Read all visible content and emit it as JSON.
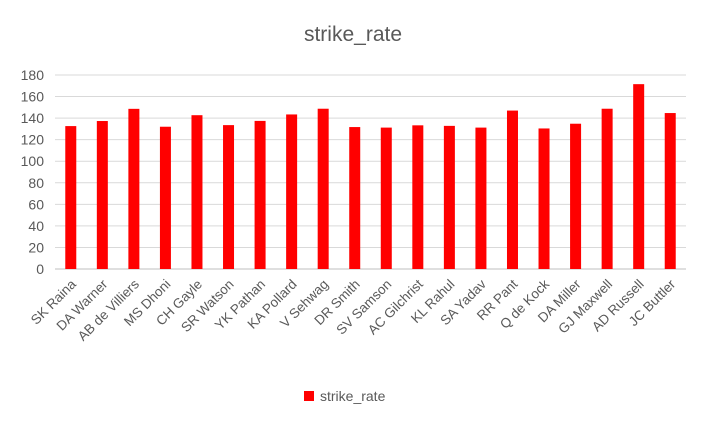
{
  "chart_data": {
    "type": "bar",
    "title": "strike_rate",
    "xlabel": "",
    "ylabel": "",
    "ylim": [
      0,
      180
    ],
    "yticks": [
      0,
      20,
      40,
      60,
      80,
      100,
      120,
      140,
      160,
      180
    ],
    "grid": true,
    "legend_position": "bottom",
    "categories": [
      "SK Raina",
      "DA Warner",
      "AB de Villiers",
      "MS Dhoni",
      "CH Gayle",
      "SR Watson",
      "YK Pathan",
      "KA Pollard",
      "V Sehwag",
      "DR Smith",
      "SV Samson",
      "AC Gilchrist",
      "KL Rahul",
      "SA Yadav",
      "RR Pant",
      "Q de Kock",
      "DA Miller",
      "GJ Maxwell",
      "AD Russell",
      "JC Buttler"
    ],
    "series": [
      {
        "name": "strike_rate",
        "color": "#ff0000",
        "values": [
          132.6,
          137.3,
          148.6,
          132.0,
          142.7,
          133.5,
          137.4,
          143.4,
          148.7,
          131.7,
          131.2,
          133.3,
          132.8,
          131.2,
          147.0,
          130.4,
          134.8,
          148.7,
          171.5,
          144.7
        ]
      }
    ]
  }
}
